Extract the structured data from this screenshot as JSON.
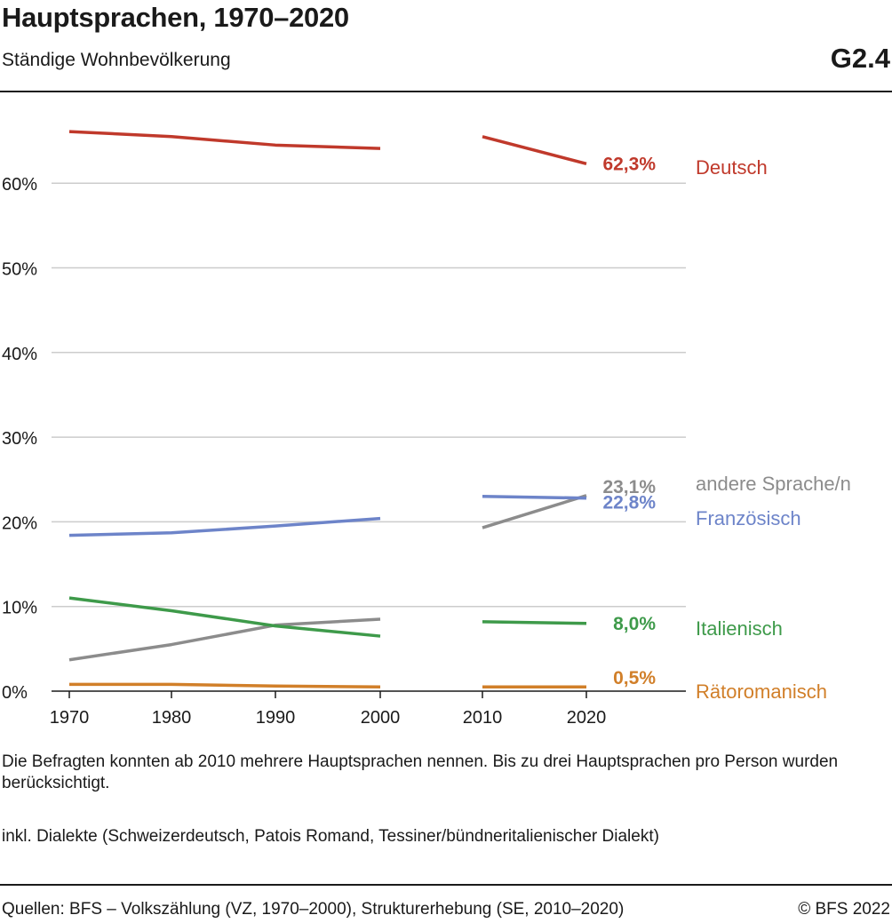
{
  "header": {
    "title": "Hauptsprachen, 1970–2020",
    "subtitle": "Ständige Wohnbevölkerung",
    "code": "G2.4"
  },
  "notes": [
    "Die Befragten konnten ab 2010 mehrere Hauptsprachen nennen. Bis zu drei Hauptsprachen pro Person wurden berücksichtigt.",
    "inkl. Dialekte (Schweizerdeutsch, Patois Romand, Tessiner/bündneritalienischer Dialekt)"
  ],
  "footer": {
    "sources": "Quellen: BFS – Volkszählung (VZ, 1970–2000), Strukturerhebung (SE, 2010–2020)",
    "copyright": "© BFS 2022"
  },
  "chart_data": {
    "type": "line",
    "title": "Hauptsprachen, 1970–2020",
    "x": [
      1970,
      1980,
      1990,
      2000,
      2010,
      2020
    ],
    "xticks": [
      "1970",
      "1980",
      "1990",
      "2000",
      "2010",
      "2020"
    ],
    "ylim": [
      0,
      70
    ],
    "yticks": [
      0,
      10,
      20,
      30,
      40,
      50,
      60
    ],
    "ytick_labels": [
      "0%",
      "10%",
      "20%",
      "30%",
      "40%",
      "50%",
      "60%"
    ],
    "grid": true,
    "series": [
      {
        "name": "Deutsch",
        "color": "#c0392b",
        "values": [
          66.1,
          65.5,
          64.5,
          64.1,
          65.5,
          62.3
        ],
        "end_label": "62,3%"
      },
      {
        "name": "andere Sprache/n",
        "color": "#8c8c8c",
        "values": [
          3.7,
          5.5,
          7.8,
          8.5,
          19.3,
          23.1
        ],
        "end_label": "23,1%"
      },
      {
        "name": "Französisch",
        "color": "#6d84c9",
        "values": [
          18.4,
          18.7,
          19.5,
          20.4,
          23.0,
          22.8
        ],
        "end_label": "22,8%"
      },
      {
        "name": "Italienisch",
        "color": "#3e9a4a",
        "values": [
          11.0,
          9.5,
          7.7,
          6.5,
          8.2,
          8.0
        ],
        "end_label": "8,0%"
      },
      {
        "name": "Rätoromanisch",
        "color": "#d17f29",
        "values": [
          0.8,
          0.8,
          0.6,
          0.5,
          0.5,
          0.5
        ],
        "end_label": "0,5%"
      }
    ]
  }
}
